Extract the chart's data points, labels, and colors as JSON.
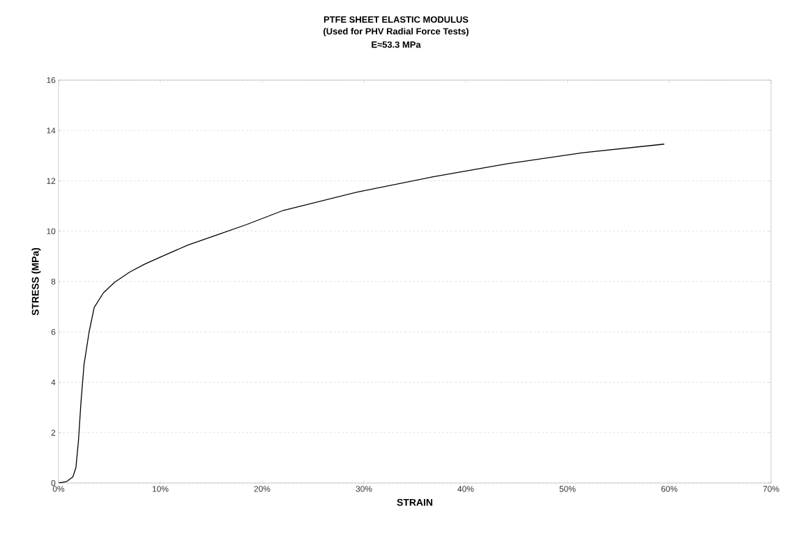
{
  "chart_data": {
    "type": "line",
    "title": "PTFE SHEET ELASTIC MODULUS",
    "subtitle": "(Used for PHV Radial Force Tests)",
    "annotations": [
      "E≈53.3 MPa"
    ],
    "xlabel": "STRAIN",
    "ylabel": "STRESS (MPa)",
    "xlim": [
      0,
      70
    ],
    "ylim": [
      0,
      16
    ],
    "xticks": [
      {
        "value": 0,
        "label": "0%"
      },
      {
        "value": 10,
        "label": "10%"
      },
      {
        "value": 20,
        "label": "20%"
      },
      {
        "value": 30,
        "label": "30%"
      },
      {
        "value": 40,
        "label": "40%"
      },
      {
        "value": 50,
        "label": "50%"
      },
      {
        "value": 60,
        "label": "60%"
      },
      {
        "value": 70,
        "label": "70%"
      }
    ],
    "yticks": [
      0,
      2,
      4,
      6,
      8,
      10,
      12,
      14,
      16
    ],
    "grid": "y",
    "marker": "none",
    "line_style": "solid",
    "series": [
      {
        "color": "#000000",
        "x": [
          0,
          0.8,
          1.4,
          1.7,
          1.95,
          2.2,
          2.5,
          3.0,
          3.5,
          4.4,
          5.5,
          7.0,
          8.4,
          10,
          12.7,
          15.6,
          18.5,
          22.1,
          29.5,
          36.8,
          44.1,
          51.5,
          59.5
        ],
        "values": [
          0,
          0.06,
          0.24,
          0.6,
          1.65,
          3.2,
          4.7,
          6.0,
          6.97,
          7.55,
          7.97,
          8.38,
          8.68,
          8.97,
          9.45,
          9.86,
          10.27,
          10.83,
          11.57,
          12.16,
          12.68,
          13.12,
          13.46
        ]
      }
    ]
  }
}
